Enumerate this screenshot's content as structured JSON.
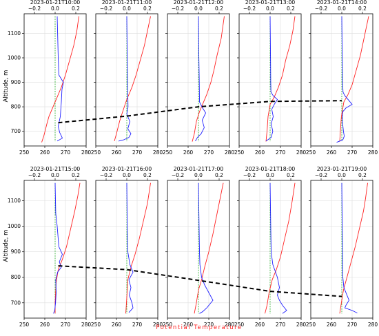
{
  "colors": {
    "theta": "#ff2020",
    "wind": "#2020ff",
    "zero": "#22aa22",
    "pbl": "#000000",
    "grid": "#dddddd"
  },
  "chart_data": {
    "type": "line",
    "ylabel": "Altitude, m",
    "xlabel": "Potential Temperature",
    "xlim_theta": [
      250,
      280
    ],
    "xticks_theta": [
      250,
      260,
      270,
      280
    ],
    "xlim_top": [
      -0.3,
      0.3
    ],
    "xticks_top": [
      -0.2,
      0.0,
      0.2
    ],
    "ylim": [
      640,
      1180
    ],
    "yticks": [
      700,
      800,
      900,
      1000,
      1100
    ],
    "grid": true,
    "rows": [
      {
        "xlabel": "",
        "pbl_height": [
          735,
          762,
          800,
          822,
          825
        ],
        "panels": [
          {
            "title": "2023-01-21T10:00",
            "theta": [
              [
                258.5,
                655
              ],
              [
                259.5,
                680
              ],
              [
                261,
                730
              ],
              [
                262,
                760
              ],
              [
                264,
                800
              ],
              [
                266,
                840
              ],
              [
                268,
                880
              ],
              [
                270,
                930
              ],
              [
                272,
                990
              ],
              [
                274,
                1050
              ],
              [
                275.5,
                1110
              ],
              [
                276.5,
                1170
              ]
            ],
            "wind": [
              [
                266,
                1170
              ],
              [
                266.5,
                1000
              ],
              [
                266.8,
                930
              ],
              [
                269,
                900
              ],
              [
                268.3,
                870
              ],
              [
                268,
                820
              ],
              [
                267.5,
                760
              ],
              [
                266.5,
                720
              ],
              [
                267.2,
                695
              ],
              [
                268.5,
                672
              ],
              [
                266,
                660
              ]
            ]
          },
          {
            "title": "2023-01-21T11:00",
            "theta": [
              [
                259,
                660
              ],
              [
                260,
                690
              ],
              [
                261.5,
                740
              ],
              [
                263,
                780
              ],
              [
                265,
                830
              ],
              [
                267.5,
                880
              ],
              [
                269.5,
                930
              ],
              [
                271.5,
                990
              ],
              [
                273.5,
                1050
              ],
              [
                275,
                1110
              ],
              [
                276.5,
                1170
              ]
            ],
            "wind": [
              [
                265,
                1170
              ],
              [
                265.2,
                1000
              ],
              [
                265.4,
                900
              ],
              [
                265.6,
                800
              ],
              [
                265,
                770
              ],
              [
                266.5,
                740
              ],
              [
                265.5,
                710
              ],
              [
                267,
                690
              ],
              [
                266,
                675
              ],
              [
                263.5,
                665
              ],
              [
                261,
                660
              ]
            ]
          },
          {
            "title": "2023-01-21T12:00",
            "theta": [
              [
                262,
                658
              ],
              [
                263,
                690
              ],
              [
                264,
                740
              ],
              [
                265.5,
                780
              ],
              [
                267,
                810
              ],
              [
                269,
                850
              ],
              [
                271,
                900
              ],
              [
                272.5,
                950
              ],
              [
                274,
                1010
              ],
              [
                276,
                1080
              ],
              [
                277.5,
                1170
              ]
            ],
            "wind": [
              [
                265,
                1170
              ],
              [
                265.2,
                1000
              ],
              [
                265.4,
                900
              ],
              [
                265.5,
                820
              ],
              [
                267,
                795
              ],
              [
                268.5,
                775
              ],
              [
                266.8,
                745
              ],
              [
                267.8,
                715
              ],
              [
                266.3,
                690
              ],
              [
                264.5,
                675
              ],
              [
                263.5,
                660
              ]
            ]
          },
          {
            "title": "2023-01-21T13:00",
            "theta": [
              [
                263,
                658
              ],
              [
                263.5,
                700
              ],
              [
                264,
                760
              ],
              [
                265,
                810
              ],
              [
                267,
                840
              ],
              [
                269,
                880
              ],
              [
                271,
                930
              ],
              [
                272.5,
                990
              ],
              [
                274.5,
                1050
              ],
              [
                276,
                1110
              ],
              [
                277,
                1170
              ]
            ],
            "wind": [
              [
                265,
                1170
              ],
              [
                265.2,
                1000
              ],
              [
                265.3,
                900
              ],
              [
                265.4,
                860
              ],
              [
                266.5,
                845
              ],
              [
                268.5,
                830
              ],
              [
                267,
                810
              ],
              [
                265.8,
                790
              ],
              [
                266.5,
                760
              ],
              [
                265.5,
                730
              ],
              [
                266.3,
                700
              ],
              [
                265.5,
                675
              ],
              [
                263,
                660
              ]
            ]
          },
          {
            "title": "2023-01-21T14:00",
            "theta": [
              [
                264,
                658
              ],
              [
                264.3,
                700
              ],
              [
                264.8,
                760
              ],
              [
                266,
                820
              ],
              [
                268,
                850
              ],
              [
                270,
                890
              ],
              [
                272,
                950
              ],
              [
                274,
                1010
              ],
              [
                275.5,
                1070
              ],
              [
                277,
                1130
              ],
              [
                278,
                1170
              ]
            ],
            "wind": [
              [
                265,
                1170
              ],
              [
                265.2,
                1000
              ],
              [
                265.4,
                900
              ],
              [
                265.6,
                860
              ],
              [
                266.5,
                845
              ],
              [
                268.5,
                825
              ],
              [
                270,
                810
              ],
              [
                267,
                795
              ],
              [
                265.5,
                780
              ],
              [
                265.3,
                740
              ],
              [
                265.8,
                700
              ],
              [
                266.2,
                680
              ],
              [
                265.5,
                665
              ],
              [
                262.5,
                655
              ]
            ]
          }
        ]
      },
      {
        "xlabel": "Potential Temperature",
        "pbl_height": [
          845,
          830,
          788,
          745,
          725
        ],
        "panels": [
          {
            "title": "2023-01-21T15:00",
            "theta": [
              [
                265,
                658
              ],
              [
                265,
                700
              ],
              [
                265.5,
                780
              ],
              [
                266.5,
                830
              ],
              [
                268.5,
                870
              ],
              [
                270.5,
                920
              ],
              [
                272.5,
                990
              ],
              [
                274.5,
                1060
              ],
              [
                276,
                1120
              ],
              [
                277,
                1170
              ]
            ],
            "wind": [
              [
                265,
                1170
              ],
              [
                265.3,
                1050
              ],
              [
                266,
                1000
              ],
              [
                266.5,
                950
              ],
              [
                266.8,
                920
              ],
              [
                268.5,
                890
              ],
              [
                267,
                860
              ],
              [
                268,
                840
              ],
              [
                266.2,
                820
              ],
              [
                265.3,
                790
              ],
              [
                265.5,
                740
              ],
              [
                265.2,
                700
              ],
              [
                264.8,
                670
              ],
              [
                264.2,
                658
              ]
            ]
          },
          {
            "title": "2023-01-21T16:00",
            "theta": [
              [
                264.5,
                658
              ],
              [
                265,
                720
              ],
              [
                265.5,
                790
              ],
              [
                267,
                840
              ],
              [
                269,
                890
              ],
              [
                271,
                950
              ],
              [
                273,
                1020
              ],
              [
                275,
                1090
              ],
              [
                276.5,
                1170
              ]
            ],
            "wind": [
              [
                265,
                1170
              ],
              [
                265.2,
                1000
              ],
              [
                265.5,
                900
              ],
              [
                266.5,
                850
              ],
              [
                268,
                820
              ],
              [
                266,
                790
              ],
              [
                267,
                760
              ],
              [
                266.2,
                730
              ],
              [
                267.5,
                700
              ],
              [
                268,
                680
              ],
              [
                266,
                662
              ]
            ]
          },
          {
            "title": "2023-01-21T17:00",
            "theta": [
              [
                263,
                658
              ],
              [
                264,
                700
              ],
              [
                265,
                750
              ],
              [
                266.5,
                790
              ],
              [
                268,
                840
              ],
              [
                270,
                900
              ],
              [
                272,
                970
              ],
              [
                274,
                1050
              ],
              [
                276,
                1130
              ],
              [
                277,
                1170
              ]
            ],
            "wind": [
              [
                265,
                1170
              ],
              [
                265.3,
                1000
              ],
              [
                265.5,
                900
              ],
              [
                265.7,
                850
              ],
              [
                266.5,
                800
              ],
              [
                268,
                770
              ],
              [
                270,
                740
              ],
              [
                272,
                710
              ],
              [
                269,
                680
              ],
              [
                267,
                665
              ],
              [
                265.5,
                658
              ]
            ]
          },
          {
            "title": "2023-01-21T18:00",
            "theta": [
              [
                262.5,
                658
              ],
              [
                263.5,
                690
              ],
              [
                264.5,
                740
              ],
              [
                266,
                790
              ],
              [
                268,
                830
              ],
              [
                270,
                880
              ],
              [
                272,
                950
              ],
              [
                274,
                1020
              ],
              [
                275.5,
                1090
              ],
              [
                277,
                1170
              ]
            ],
            "wind": [
              [
                265,
                1170
              ],
              [
                265.3,
                1000
              ],
              [
                265.5,
                900
              ],
              [
                266.3,
                850
              ],
              [
                268.5,
                800
              ],
              [
                269.5,
                760
              ],
              [
                268.5,
                730
              ],
              [
                269.5,
                710
              ],
              [
                271,
                690
              ],
              [
                273,
                670
              ],
              [
                271,
                658
              ]
            ]
          },
          {
            "title": "2023-01-21T19:00",
            "theta": [
              [
                264,
                658
              ],
              [
                264.8,
                700
              ],
              [
                265.8,
                750
              ],
              [
                267.5,
                800
              ],
              [
                269.5,
                860
              ],
              [
                271.5,
                920
              ],
              [
                273.5,
                990
              ],
              [
                275.5,
                1060
              ],
              [
                276.5,
                1110
              ],
              [
                277.5,
                1170
              ]
            ],
            "wind": [
              [
                265,
                1170
              ],
              [
                265.2,
                1000
              ],
              [
                265.4,
                900
              ],
              [
                265.5,
                800
              ],
              [
                266,
                760
              ],
              [
                267.5,
                730
              ],
              [
                268.5,
                710
              ],
              [
                267,
                690
              ],
              [
                266.5,
                680
              ],
              [
                270,
                670
              ],
              [
                272.5,
                660
              ]
            ]
          }
        ]
      }
    ]
  }
}
